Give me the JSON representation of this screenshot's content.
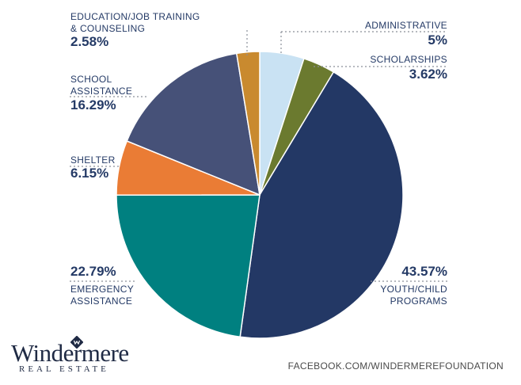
{
  "chart_data": {
    "type": "pie",
    "title": "",
    "slices": [
      {
        "label": "ADMINISTRATIVE",
        "value": 5,
        "display": "5%",
        "color": "#c9e2f3"
      },
      {
        "label": "SCHOLARSHIPS",
        "value": 3.62,
        "display": "3.62%",
        "color": "#6b7a2f"
      },
      {
        "label": "YOUTH/CHILD PROGRAMS",
        "value": 43.57,
        "display": "43.57%",
        "color": "#233865"
      },
      {
        "label": "EMERGENCY ASSISTANCE",
        "value": 22.79,
        "display": "22.79%",
        "color": "#008080"
      },
      {
        "label": "SHELTER",
        "value": 6.15,
        "display": "6.15%",
        "color": "#ea7c35"
      },
      {
        "label": "SCHOOL ASSISTANCE",
        "value": 16.29,
        "display": "16.29%",
        "color": "#465178"
      },
      {
        "label": "EDUCATION/JOB TRAINING & COUNSELING",
        "value": 2.58,
        "display": "2.58%",
        "color": "#c98a2f"
      }
    ]
  },
  "labels": {
    "administrative": {
      "name": "ADMINISTRATIVE",
      "pct": "5%"
    },
    "scholarships": {
      "name": "SCHOLARSHIPS",
      "pct": "3.62%"
    },
    "youth_line1": "YOUTH/CHILD",
    "youth_line2": "PROGRAMS",
    "youth_pct": "43.57%",
    "emergency_line1": "EMERGENCY",
    "emergency_line2": "ASSISTANCE",
    "emergency_pct": "22.79%",
    "shelter": {
      "name": "SHELTER",
      "pct": "6.15%"
    },
    "school_line1": "SCHOOL",
    "school_line2": "ASSISTANCE",
    "school_pct": "16.29%",
    "education_line1": "EDUCATION/JOB TRAINING",
    "education_line2": "& COUNSELING",
    "education_pct": "2.58%"
  },
  "brand": {
    "name": "Windermere",
    "subtitle": "REAL ESTATE",
    "logo_icon": "windermere-w-mark-icon"
  },
  "footer": {
    "link_text": "FACEBOOK.COM/WINDERMEREFOUNDATION"
  }
}
